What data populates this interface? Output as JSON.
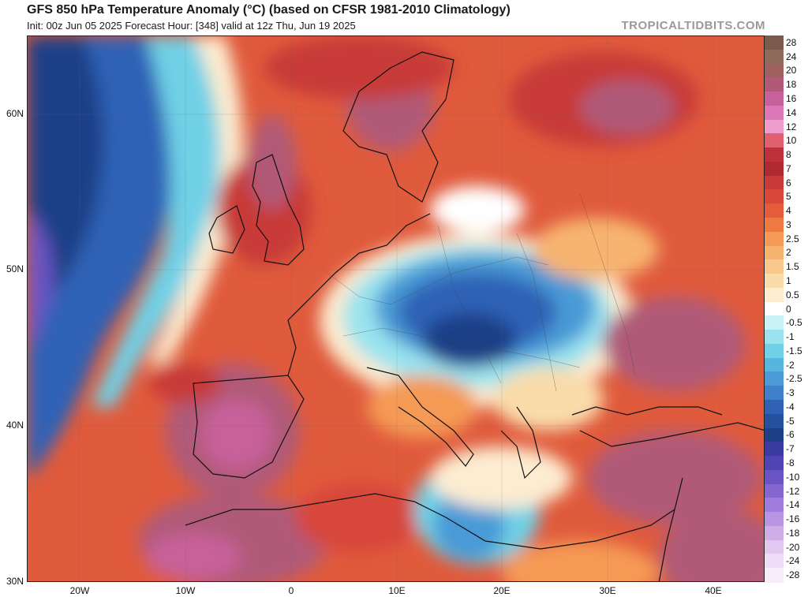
{
  "header": {
    "title": "GFS 850 hPa Temperature Anomaly (°C) (based on CFSR 1981-2010 Climatology)",
    "subtitle": "Init: 00z Jun 05 2025   Forecast Hour: [348]   valid at 12z Thu, Jun 19 2025",
    "credit": "TROPICALTIDBITS.COM"
  },
  "axes": {
    "lat_labels": [
      "60N",
      "50N",
      "40N",
      "30N"
    ],
    "lon_labels": [
      "20W",
      "10W",
      "0",
      "10E",
      "20E",
      "30E",
      "40E"
    ]
  },
  "colorbar": {
    "labels": [
      "28",
      "24",
      "20",
      "18",
      "16",
      "14",
      "12",
      "10",
      "8",
      "7",
      "6",
      "5",
      "4",
      "3",
      "2.5",
      "2",
      "1.5",
      "1",
      "0.5",
      "0",
      "-0.5",
      "-1",
      "-1.5",
      "-2",
      "-2.5",
      "-3",
      "-4",
      "-5",
      "-6",
      "-7",
      "-8",
      "-10",
      "-12",
      "-14",
      "-16",
      "-18",
      "-20",
      "-24",
      "-28"
    ],
    "colors": [
      "#7a5a4a",
      "#8e6a5a",
      "#a06060",
      "#b05a78",
      "#c8609a",
      "#dd78b8",
      "#ee9ccc",
      "#e06070",
      "#c0303a",
      "#b02830",
      "#c83a38",
      "#d8473a",
      "#e45c3a",
      "#ee7a42",
      "#f59a55",
      "#f7b470",
      "#f8c98c",
      "#fadcaa",
      "#fcecd0",
      "#ffffff",
      "#c8f2f6",
      "#9ae3ee",
      "#6fd0e6",
      "#56b6de",
      "#4a9ad6",
      "#3f80cc",
      "#2f62b6",
      "#24509e",
      "#1e4088",
      "#3a3aa0",
      "#5044b4",
      "#6a54c4",
      "#8466d0",
      "#a07cdc",
      "#b894e2",
      "#cfaee8",
      "#e0c8f0",
      "#eedcf6",
      "#f6ecfa"
    ]
  },
  "map_description": "Europe, North Africa, Middle East 850 hPa temperature anomaly field"
}
